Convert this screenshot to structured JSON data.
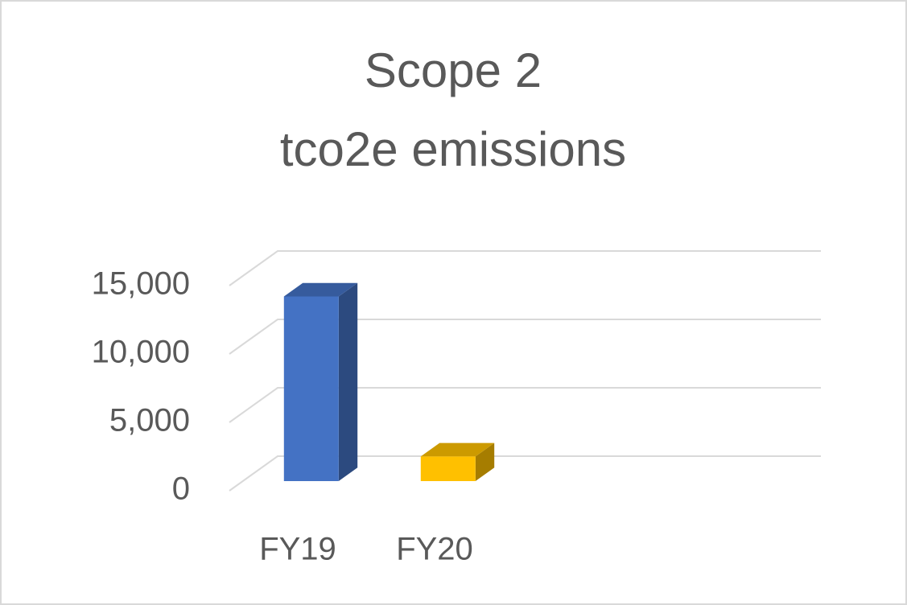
{
  "chart_data": {
    "type": "bar3d",
    "title": [
      "Scope 2",
      "tco2e emissions"
    ],
    "categories": [
      "FY19",
      "FY20"
    ],
    "values": [
      13500,
      1800
    ],
    "colors": [
      "#4472c4",
      "#ffc000"
    ],
    "ylim": [
      0,
      15000
    ],
    "yticks": [
      0,
      {
        "value": 5000,
        "label": "5,000"
      },
      {
        "value": 10000,
        "label": "10,000"
      },
      {
        "value": 15000,
        "label": "15,000"
      }
    ],
    "grid": true
  }
}
